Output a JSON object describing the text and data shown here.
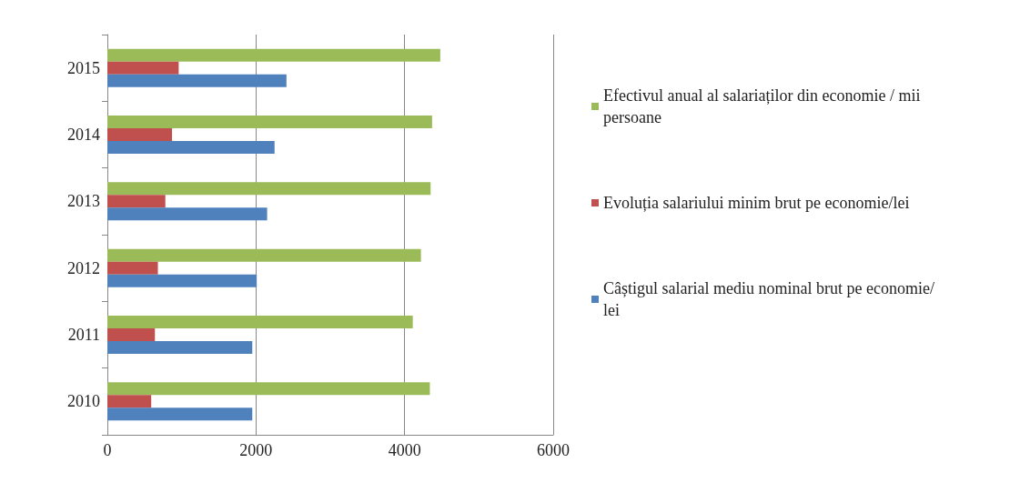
{
  "chart_data": {
    "type": "bar",
    "orientation": "horizontal",
    "categories": [
      "2015",
      "2014",
      "2013",
      "2012",
      "2011",
      "2010"
    ],
    "series": [
      {
        "name": "Efectivul anual al salariaților din economie / mii persoane",
        "color": "#9bbb59",
        "values": [
          4480,
          4370,
          4350,
          4220,
          4110,
          4340
        ]
      },
      {
        "name": "Evoluția salariului minim brut pe economie/lei",
        "color": "#c0504d",
        "values": [
          960,
          870,
          780,
          680,
          640,
          590
        ]
      },
      {
        "name": "Câștigul salarial mediu nominal brut pe economie/ lei",
        "color": "#4f81bd",
        "values": [
          2410,
          2250,
          2150,
          2010,
          1950,
          1950
        ]
      }
    ],
    "xlim": [
      0,
      6000
    ],
    "xticks": [
      0,
      2000,
      4000,
      6000
    ],
    "grid": "x",
    "legend": "right"
  }
}
